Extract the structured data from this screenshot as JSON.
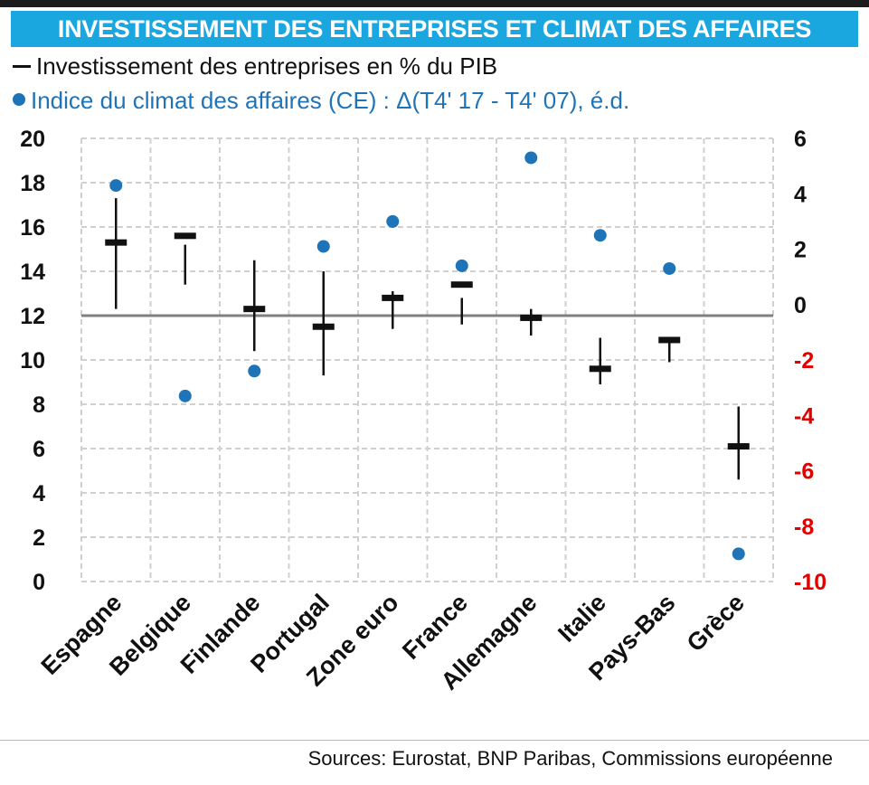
{
  "title": "INVESTISSEMENT DES ENTREPRISES ET CLIMAT DES AFFAIRES",
  "legend": {
    "investment": "Investissement des entreprises en  % du PIB",
    "climate": "Indice du climat des affaires (CE) : Δ(T4' 17 - T4' 07), é.d."
  },
  "source": "Sources: Eurostat, BNP Paribas, Commissions européenne",
  "colors": {
    "title_bg": "#1aa7e0",
    "investment": "#111111",
    "climate": "#1f74b8",
    "right_axis_negative": "#e00000"
  },
  "chart_data": {
    "type": "scatter",
    "categories": [
      "Espagne",
      "Belgique",
      "Finlande",
      "Portugal",
      "Zone euro",
      "France",
      "Allemagne",
      "Italie",
      "Pays-Bas",
      "Grèce"
    ],
    "left_axis": {
      "ylim": [
        0,
        20
      ],
      "ticks": [
        "0",
        "2",
        "4",
        "6",
        "8",
        "10",
        "12",
        "14",
        "16",
        "18",
        "20"
      ]
    },
    "right_axis": {
      "ylim": [
        -10,
        6
      ],
      "ticks": [
        "-10",
        "-8",
        "-6",
        "-4",
        "-2",
        "0",
        "2",
        "4",
        "6"
      ]
    },
    "series": [
      {
        "name": "Investissement des entreprises en  % du PIB",
        "marker": "dash",
        "axis": "left",
        "values": [
          15.3,
          15.6,
          12.3,
          11.5,
          12.8,
          13.4,
          11.9,
          9.6,
          10.9,
          6.1
        ],
        "range_low": [
          12.3,
          13.4,
          10.4,
          9.3,
          11.4,
          11.6,
          11.1,
          8.9,
          9.9,
          4.6
        ],
        "range_high": [
          17.3,
          15.2,
          14.5,
          14.0,
          13.1,
          12.8,
          12.3,
          11.0,
          10.8,
          7.9
        ]
      },
      {
        "name": "Indice du climat des affaires (CE) : Δ(T4' 17 - T4' 07), é.d.",
        "marker": "dot",
        "axis": "right",
        "values": [
          4.3,
          -3.3,
          -2.4,
          2.1,
          3.0,
          1.4,
          5.3,
          2.5,
          1.3,
          -9.0
        ]
      }
    ],
    "reference_line": {
      "axis": "left",
      "value": 12
    },
    "grid": true
  }
}
